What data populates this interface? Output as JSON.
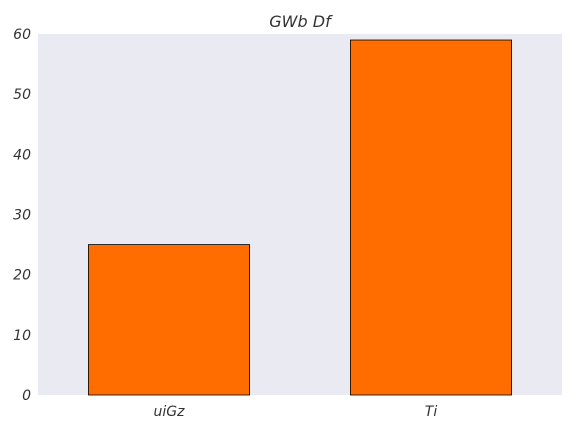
{
  "chart_data": {
    "type": "bar",
    "title": "GWb Df",
    "xlabel": "",
    "ylabel": "",
    "categories": [
      "uiGz",
      "Ti"
    ],
    "values": [
      25,
      59
    ],
    "ylim": [
      0,
      60
    ],
    "yticks": [
      0,
      10,
      20,
      30,
      40,
      50,
      60
    ],
    "grid": false,
    "legend": "none",
    "colors": {
      "bar_fill": "#ff6d00",
      "bar_edge": "#000000",
      "plot_background": "#eaeaf2",
      "text": "#333333"
    }
  }
}
